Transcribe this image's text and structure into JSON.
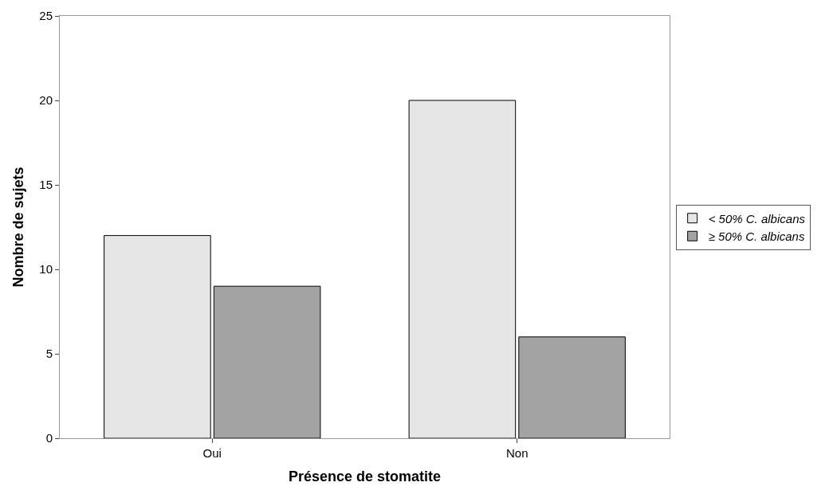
{
  "chart_data": {
    "type": "bar",
    "xlabel": "Présence de stomatite",
    "ylabel": "Nombre de sujets",
    "categories": [
      "Oui",
      "Non"
    ],
    "series": [
      {
        "name": "< 50% C. albicans",
        "color": "#e6e6e6",
        "values": [
          12,
          20
        ]
      },
      {
        "name": "≥ 50% C. albicans",
        "color": "#a3a3a3",
        "values": [
          9,
          6
        ]
      }
    ],
    "ylim": [
      0,
      25
    ],
    "yticks": [
      0,
      5,
      10,
      15,
      20,
      25
    ],
    "legend": "right"
  }
}
